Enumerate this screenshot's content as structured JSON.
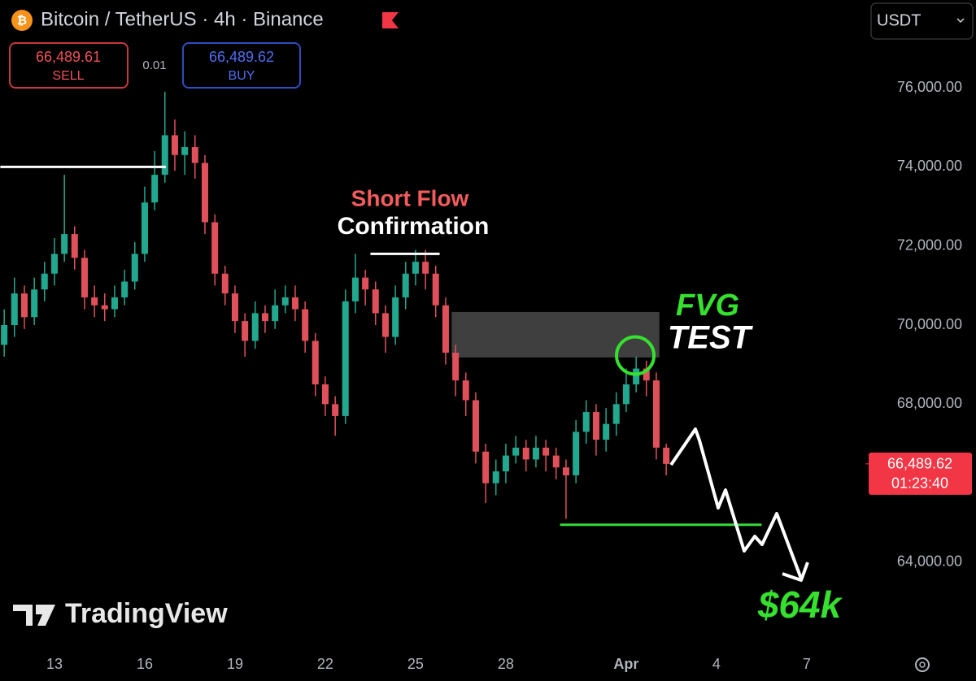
{
  "toolbar": {
    "title": "Bitcoin / TetherUS · 4h · Binance",
    "sell_price": "66,489.61",
    "sell_label": "SELL",
    "spread": "0.01",
    "buy_price": "66,489.62",
    "buy_label": "BUY",
    "currency": "USDT"
  },
  "chart_data": {
    "type": "candlestick",
    "x": [
      11.33,
      11.67,
      12,
      12.33,
      12.67,
      13,
      13.33,
      13.67,
      14,
      14.33,
      14.67,
      15,
      15.33,
      15.67,
      16,
      16.33,
      16.67,
      17,
      17.33,
      17.67,
      18,
      18.33,
      18.67,
      19,
      19.33,
      19.67,
      20,
      20.33,
      20.67,
      21,
      21.33,
      21.67,
      22,
      22.33,
      22.67,
      23,
      23.33,
      23.67,
      24,
      24.33,
      24.67,
      25,
      25.33,
      25.67,
      26,
      26.33,
      26.67,
      27,
      27.33,
      27.67,
      28,
      28.33,
      28.67,
      29,
      29.33,
      29.67,
      30,
      30.33,
      30.67,
      31,
      31.33,
      31.67,
      32,
      32.33,
      32.67,
      33,
      33.33
    ],
    "open": [
      69500,
      70000,
      70800,
      70200,
      70900,
      71300,
      71800,
      72300,
      71700,
      70700,
      70500,
      70400,
      70700,
      71100,
      71800,
      73100,
      73800,
      74800,
      74300,
      74500,
      74100,
      72600,
      71300,
      70800,
      70100,
      69600,
      70300,
      70100,
      70500,
      70700,
      70400,
      69600,
      68500,
      68000,
      67700,
      70600,
      71200,
      70900,
      70300,
      69700,
      70700,
      71300,
      71600,
      71300,
      70500,
      69300,
      68600,
      68100,
      66800,
      66000,
      66300,
      66700,
      66900,
      66600,
      66900,
      66700,
      66400,
      66200,
      67300,
      67800,
      67100,
      67500,
      68000,
      68500,
      68900,
      68600,
      66900
    ],
    "high": [
      70400,
      71200,
      71000,
      71200,
      71600,
      72200,
      73800,
      72500,
      71900,
      71000,
      70800,
      71000,
      71400,
      72100,
      73500,
      74400,
      75900,
      75200,
      74900,
      74800,
      74300,
      72800,
      71500,
      71000,
      70300,
      70600,
      70500,
      70900,
      71000,
      71000,
      70600,
      69800,
      68700,
      68200,
      70900,
      71800,
      71400,
      71100,
      70500,
      71000,
      71600,
      71900,
      71900,
      71500,
      70700,
      69500,
      68800,
      68300,
      67000,
      66600,
      67000,
      67200,
      67100,
      67200,
      67100,
      66900,
      66600,
      67600,
      68100,
      68000,
      67900,
      68300,
      68900,
      69200,
      69100,
      68800,
      67000
    ],
    "low": [
      69200,
      69700,
      69900,
      70000,
      70600,
      71000,
      71600,
      71400,
      70400,
      70200,
      70100,
      70200,
      70500,
      70900,
      71600,
      72900,
      73600,
      73900,
      73800,
      73700,
      72300,
      71000,
      70500,
      69800,
      69200,
      69400,
      69800,
      69900,
      70300,
      70100,
      69300,
      68200,
      67700,
      67200,
      67500,
      70300,
      70500,
      70000,
      69300,
      69500,
      70400,
      71000,
      70900,
      70200,
      69000,
      68200,
      67700,
      66500,
      65500,
      65700,
      66000,
      66500,
      66300,
      66400,
      66300,
      66100,
      65100,
      66000,
      67000,
      66700,
      66800,
      67200,
      67800,
      68300,
      68200,
      66600,
      66200
    ],
    "close": [
      70000,
      70800,
      70200,
      70900,
      71300,
      71800,
      72300,
      71700,
      70700,
      70500,
      70400,
      70700,
      71100,
      71800,
      73100,
      73800,
      74800,
      74300,
      74500,
      74100,
      72600,
      71300,
      70800,
      70100,
      69600,
      70300,
      70100,
      70500,
      70700,
      70400,
      69600,
      68500,
      68000,
      67700,
      70600,
      71200,
      70900,
      70300,
      69700,
      70700,
      71300,
      71600,
      71300,
      70500,
      69300,
      68600,
      68100,
      66800,
      66000,
      66300,
      66700,
      66900,
      66600,
      66900,
      66700,
      66400,
      66200,
      67300,
      67800,
      67100,
      67500,
      68000,
      68500,
      68900,
      68600,
      66900,
      66489.62
    ],
    "up_color": "#22a88f",
    "down_color": "#e0505a",
    "xlim": [
      11.19,
      39.84
    ],
    "xticks": [
      13,
      16,
      19,
      22,
      25,
      28,
      {
        "value": 32,
        "label": "Apr"
      },
      {
        "value": 35,
        "label": "4"
      },
      {
        "value": 38,
        "label": "7"
      }
    ],
    "ylim": [
      61780,
      78220
    ],
    "yticks": [
      {
        "value": 64000,
        "label": "64,000.00"
      },
      {
        "value": 66000,
        "label": "66,000.00"
      },
      {
        "value": 68000,
        "label": "68,000.00"
      },
      {
        "value": 70000,
        "label": "70,000.00"
      },
      {
        "value": 72000,
        "label": "72,000.00"
      },
      {
        "value": 74000,
        "label": "74,000.00"
      },
      {
        "value": 76000,
        "label": "76,000.00"
      }
    ],
    "grid": false,
    "last_price": {
      "value": 66489.62,
      "label": "66,489.62"
    },
    "countdown": "01:23:40",
    "levels": [
      {
        "value": 74000,
        "x": [
          11.2,
          16.7
        ],
        "color": "#ffffff"
      },
      {
        "value": 71800,
        "x": [
          23.5,
          25.8
        ],
        "color": "#ffffff"
      },
      {
        "value": 64950,
        "x": [
          29.8,
          36.5
        ],
        "color": "#35d93a"
      }
    ],
    "fvg_zone": {
      "top": 70330,
      "bottom": 69180,
      "x": [
        26.2,
        33.1
      ]
    },
    "fvg_test": {
      "x": 32.3,
      "value": 69230
    },
    "annotations": {
      "short_flow": "Short Flow",
      "confirmation": "Confirmation",
      "fvg": "FVG",
      "test": "TEST",
      "target": "$64k"
    },
    "watermark": "TradingView"
  }
}
